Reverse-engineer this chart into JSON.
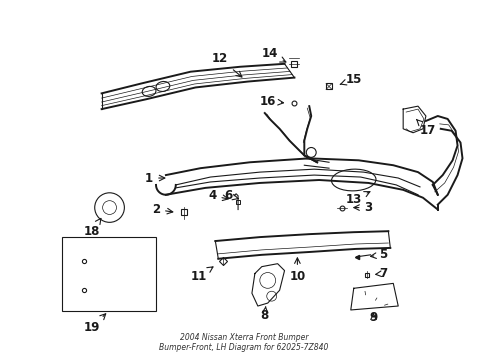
{
  "title": "2004 Nissan Xterra Front Bumper\nBumper-Front, LH Diagram for 62025-7Z840",
  "bg_color": "#ffffff",
  "line_color": "#1a1a1a",
  "fig_width": 4.89,
  "fig_height": 3.6,
  "dpi": 100,
  "label_fontsize": 8.5,
  "lw_main": 1.4,
  "lw_thin": 0.8,
  "lw_detail": 0.5
}
